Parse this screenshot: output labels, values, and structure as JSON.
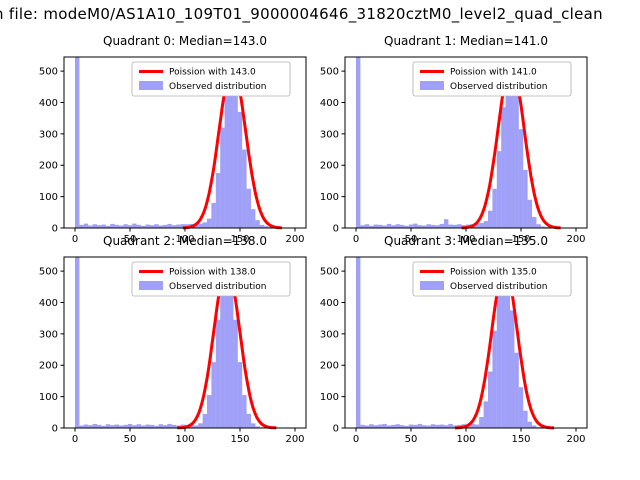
{
  "figure": {
    "suptitle": "n file: modeM0/AS1A10_109T01_9000004646_31820cztM0_level2_quad_clean",
    "background": "#ffffff"
  },
  "colors": {
    "hist_fill": "rgba(72,72,242,0.52)",
    "curve": "#ff0000",
    "spine": "#000000",
    "legend_border": "#b0b0b0"
  },
  "chart_data": [
    {
      "type": "histogram",
      "title": "Quadrant 0: Median=143.0",
      "median": 143.0,
      "legend": [
        "Poission with 143.0",
        "Observed distribution"
      ],
      "xlim": [
        -10,
        210
      ],
      "ylim": [
        0,
        545
      ],
      "xticks": [
        0,
        50,
        100,
        150,
        200
      ],
      "yticks": [
        0,
        100,
        200,
        300,
        400,
        500
      ],
      "bin_start": 0,
      "bin_width": 4,
      "bins": [
        600,
        10,
        14,
        8,
        12,
        9,
        11,
        7,
        13,
        10,
        8,
        12,
        9,
        14,
        10,
        7,
        11,
        9,
        12,
        8,
        10,
        13,
        9,
        11,
        12,
        12,
        13,
        15,
        14,
        18,
        30,
        80,
        175,
        320,
        450,
        515,
        480,
        370,
        250,
        125,
        60,
        25,
        10,
        6,
        3,
        2,
        0,
        0,
        0,
        0
      ],
      "curve": {
        "center": 143,
        "sigma": 12.0,
        "peak": 515
      }
    },
    {
      "type": "histogram",
      "title": "Quadrant 1: Median=141.0",
      "median": 141.0,
      "legend": [
        "Poission with 141.0",
        "Observed distribution"
      ],
      "xlim": [
        -10,
        210
      ],
      "ylim": [
        0,
        545
      ],
      "xticks": [
        0,
        50,
        100,
        150,
        200
      ],
      "yticks": [
        0,
        100,
        200,
        300,
        400,
        500
      ],
      "bin_start": 0,
      "bin_width": 4,
      "bins": [
        600,
        9,
        12,
        7,
        11,
        10,
        8,
        13,
        9,
        12,
        10,
        7,
        11,
        14,
        9,
        8,
        12,
        10,
        9,
        13,
        28,
        11,
        10,
        12,
        9,
        11,
        12,
        14,
        16,
        22,
        55,
        125,
        245,
        385,
        490,
        520,
        445,
        315,
        185,
        90,
        35,
        12,
        5,
        3,
        0,
        0,
        0,
        0,
        0,
        0
      ],
      "curve": {
        "center": 141,
        "sigma": 11.9,
        "peak": 520
      }
    },
    {
      "type": "histogram",
      "title": "Quadrant 2: Median=138.0",
      "median": 138.0,
      "legend": [
        "Poission with 138.0",
        "Observed distribution"
      ],
      "xlim": [
        -10,
        210
      ],
      "ylim": [
        0,
        545
      ],
      "xticks": [
        0,
        50,
        100,
        150,
        200
      ],
      "yticks": [
        0,
        100,
        200,
        300,
        400,
        500
      ],
      "bin_start": 0,
      "bin_width": 4,
      "bins": [
        600,
        8,
        11,
        9,
        13,
        10,
        7,
        12,
        9,
        11,
        8,
        10,
        13,
        9,
        12,
        8,
        11,
        10,
        7,
        12,
        9,
        13,
        10,
        8,
        11,
        10,
        11,
        8,
        15,
        45,
        105,
        210,
        345,
        465,
        515,
        465,
        345,
        210,
        105,
        45,
        15,
        5,
        2,
        0,
        0,
        0,
        0,
        0,
        0,
        0
      ],
      "curve": {
        "center": 138,
        "sigma": 11.7,
        "peak": 515
      }
    },
    {
      "type": "histogram",
      "title": "Quadrant 3: Median=135.0",
      "median": 135.0,
      "legend": [
        "Poission with 135.0",
        "Observed distribution"
      ],
      "xlim": [
        -10,
        210
      ],
      "ylim": [
        0,
        545
      ],
      "xticks": [
        0,
        50,
        100,
        150,
        200
      ],
      "yticks": [
        0,
        100,
        200,
        300,
        400,
        500
      ],
      "bin_start": 0,
      "bin_width": 4,
      "bins": [
        600,
        10,
        8,
        12,
        9,
        11,
        13,
        8,
        10,
        12,
        9,
        7,
        11,
        10,
        13,
        9,
        8,
        12,
        10,
        11,
        9,
        13,
        8,
        10,
        12,
        11,
        13,
        11,
        35,
        85,
        180,
        310,
        435,
        510,
        480,
        375,
        240,
        130,
        55,
        20,
        8,
        3,
        2,
        0,
        0,
        0,
        0,
        0,
        0,
        0
      ],
      "curve": {
        "center": 135,
        "sigma": 11.6,
        "peak": 510
      }
    }
  ]
}
